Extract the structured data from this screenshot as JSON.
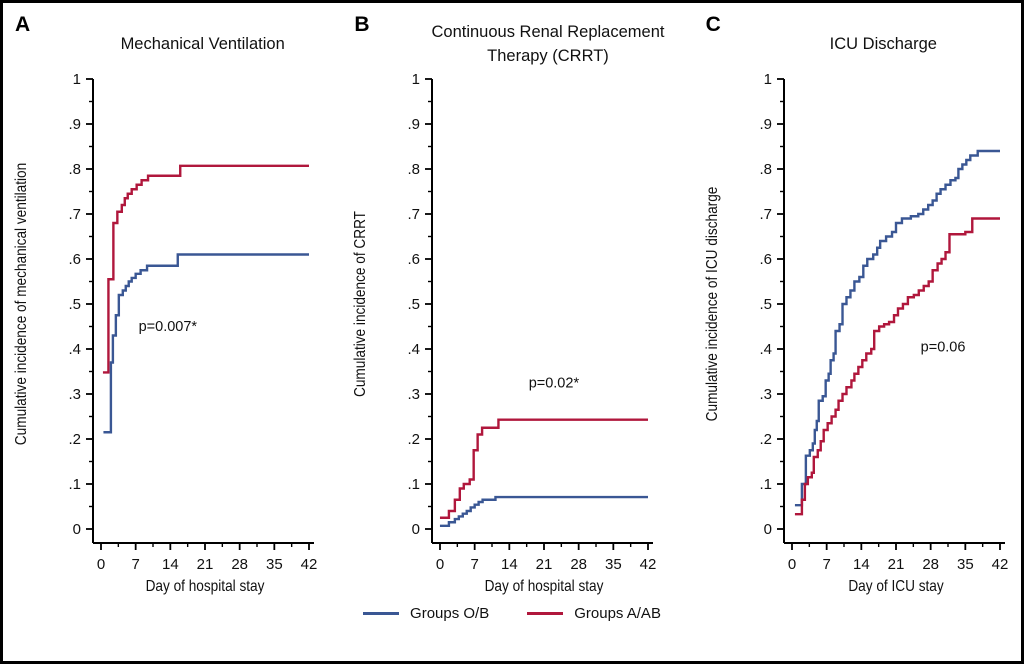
{
  "figure_colors": {
    "group_ob_blue": "#3A5794",
    "group_aab_red": "#B0173C",
    "axis_black": "#000000"
  },
  "legend": {
    "items": [
      {
        "label": "Groups O/B",
        "color": "#3A5794"
      },
      {
        "label": "Groups A/AB",
        "color": "#B0173C"
      }
    ]
  },
  "chart_data": [
    {
      "type": "line",
      "subtype": "step-cumulative-incidence",
      "panel_label": "A",
      "title": "Mechanical Ventilation",
      "xlabel": "Day of hospital stay",
      "ylabel": "Cumulative incidence of mechanical ventilation",
      "annotation": {
        "text": "p=0.007*",
        "x": 13.5,
        "y": 0.44
      },
      "xlim": [
        0,
        42
      ],
      "ylim": [
        0,
        1
      ],
      "x_major_ticks": [
        0,
        7,
        14,
        21,
        28,
        35,
        42
      ],
      "y_major_ticks": [
        0,
        0.1,
        0.2,
        0.3,
        0.4,
        0.5,
        0.6,
        0.7,
        0.8,
        0.9,
        1
      ],
      "grid": false,
      "series": [
        {
          "name": "Groups A/AB",
          "color": "#B0173C",
          "points": [
            [
              1.2,
              0.348
            ],
            [
              1.5,
              0.555
            ],
            [
              2.5,
              0.68
            ],
            [
              3.3,
              0.705
            ],
            [
              4.2,
              0.72
            ],
            [
              4.8,
              0.735
            ],
            [
              5.4,
              0.745
            ],
            [
              6.2,
              0.755
            ],
            [
              7.2,
              0.765
            ],
            [
              8.2,
              0.775
            ],
            [
              9.5,
              0.785
            ],
            [
              16,
              0.807
            ],
            [
              42,
              0.807
            ]
          ]
        },
        {
          "name": "Groups O/B",
          "color": "#3A5794",
          "points": [
            [
              1.3,
              0.215
            ],
            [
              2.0,
              0.37
            ],
            [
              2.4,
              0.43
            ],
            [
              3.0,
              0.475
            ],
            [
              3.6,
              0.52
            ],
            [
              4.4,
              0.53
            ],
            [
              5.0,
              0.54
            ],
            [
              5.6,
              0.55
            ],
            [
              6.2,
              0.558
            ],
            [
              7.0,
              0.567
            ],
            [
              8.0,
              0.575
            ],
            [
              9.3,
              0.585
            ],
            [
              15.5,
              0.61
            ],
            [
              42,
              0.61
            ]
          ]
        }
      ]
    },
    {
      "type": "line",
      "subtype": "step-cumulative-incidence",
      "panel_label": "B",
      "title": "Continuous Renal Replacement\nTherapy (CRRT)",
      "xlabel": "Day of hospital stay",
      "ylabel": "Cumulative incidence of CRRT",
      "annotation": {
        "text": "p=0.02*",
        "x": 23,
        "y": 0.315
      },
      "xlim": [
        0,
        42
      ],
      "ylim": [
        0,
        1
      ],
      "x_major_ticks": [
        0,
        7,
        14,
        21,
        28,
        35,
        42
      ],
      "y_major_ticks": [
        0,
        0.1,
        0.2,
        0.3,
        0.4,
        0.5,
        0.6,
        0.7,
        0.8,
        0.9,
        1
      ],
      "grid": false,
      "series": [
        {
          "name": "Groups A/AB",
          "color": "#B0173C",
          "points": [
            [
              0.8,
              0.025
            ],
            [
              1.8,
              0.04
            ],
            [
              3.0,
              0.065
            ],
            [
              4.0,
              0.09
            ],
            [
              4.8,
              0.1
            ],
            [
              6.0,
              0.11
            ],
            [
              6.8,
              0.175
            ],
            [
              7.6,
              0.21
            ],
            [
              8.5,
              0.225
            ],
            [
              11.8,
              0.243
            ],
            [
              42,
              0.243
            ]
          ]
        },
        {
          "name": "Groups O/B",
          "color": "#3A5794",
          "points": [
            [
              0.8,
              0.007
            ],
            [
              1.8,
              0.015
            ],
            [
              3.0,
              0.022
            ],
            [
              3.8,
              0.028
            ],
            [
              4.6,
              0.034
            ],
            [
              5.4,
              0.04
            ],
            [
              6.2,
              0.048
            ],
            [
              7.0,
              0.054
            ],
            [
              7.8,
              0.06
            ],
            [
              8.6,
              0.065
            ],
            [
              11.2,
              0.071
            ],
            [
              42,
              0.071
            ]
          ]
        }
      ]
    },
    {
      "type": "line",
      "subtype": "step-cumulative-incidence",
      "panel_label": "C",
      "title": "ICU Discharge",
      "xlabel": "Day of ICU stay",
      "ylabel": "Cumulative incidence of ICU discharge",
      "annotation": {
        "text": "p=0.06",
        "x": 30.5,
        "y": 0.395
      },
      "xlim": [
        0,
        42
      ],
      "ylim": [
        0,
        1
      ],
      "x_major_ticks": [
        0,
        7,
        14,
        21,
        28,
        35,
        42
      ],
      "y_major_ticks": [
        0,
        0.1,
        0.2,
        0.3,
        0.4,
        0.5,
        0.6,
        0.7,
        0.8,
        0.9,
        1
      ],
      "grid": false,
      "series": [
        {
          "name": "Groups O/B",
          "color": "#3A5794",
          "points": [
            [
              1.4,
              0.053
            ],
            [
              2.0,
              0.1
            ],
            [
              2.8,
              0.163
            ],
            [
              3.6,
              0.175
            ],
            [
              4.2,
              0.19
            ],
            [
              4.6,
              0.22
            ],
            [
              5.0,
              0.24
            ],
            [
              5.4,
              0.285
            ],
            [
              6.2,
              0.295
            ],
            [
              6.8,
              0.33
            ],
            [
              7.4,
              0.345
            ],
            [
              7.8,
              0.375
            ],
            [
              8.4,
              0.39
            ],
            [
              8.8,
              0.44
            ],
            [
              9.6,
              0.455
            ],
            [
              10.2,
              0.5
            ],
            [
              11.0,
              0.515
            ],
            [
              11.8,
              0.53
            ],
            [
              12.6,
              0.55
            ],
            [
              13.6,
              0.56
            ],
            [
              14.4,
              0.585
            ],
            [
              15.2,
              0.6
            ],
            [
              16.4,
              0.61
            ],
            [
              17.2,
              0.625
            ],
            [
              17.8,
              0.64
            ],
            [
              19.0,
              0.65
            ],
            [
              20.2,
              0.66
            ],
            [
              21.0,
              0.68
            ],
            [
              22.2,
              0.69
            ],
            [
              24.0,
              0.695
            ],
            [
              25.5,
              0.7
            ],
            [
              26.5,
              0.71
            ],
            [
              27.5,
              0.72
            ],
            [
              28.4,
              0.73
            ],
            [
              29.2,
              0.745
            ],
            [
              30.0,
              0.755
            ],
            [
              31.0,
              0.765
            ],
            [
              32.0,
              0.775
            ],
            [
              33.0,
              0.78
            ],
            [
              33.6,
              0.8
            ],
            [
              34.4,
              0.81
            ],
            [
              35.2,
              0.82
            ],
            [
              36.0,
              0.83
            ],
            [
              37.5,
              0.84
            ],
            [
              42,
              0.84
            ]
          ]
        },
        {
          "name": "Groups A/AB",
          "color": "#B0173C",
          "points": [
            [
              1.4,
              0.033
            ],
            [
              2.0,
              0.065
            ],
            [
              2.6,
              0.1
            ],
            [
              3.2,
              0.115
            ],
            [
              4.0,
              0.125
            ],
            [
              4.4,
              0.16
            ],
            [
              5.2,
              0.175
            ],
            [
              5.8,
              0.195
            ],
            [
              6.4,
              0.22
            ],
            [
              7.2,
              0.235
            ],
            [
              8.0,
              0.25
            ],
            [
              8.8,
              0.265
            ],
            [
              9.4,
              0.285
            ],
            [
              10.2,
              0.3
            ],
            [
              11.0,
              0.315
            ],
            [
              12.0,
              0.33
            ],
            [
              12.6,
              0.345
            ],
            [
              13.4,
              0.36
            ],
            [
              14.2,
              0.375
            ],
            [
              15.0,
              0.39
            ],
            [
              16.0,
              0.4
            ],
            [
              16.6,
              0.44
            ],
            [
              17.6,
              0.45
            ],
            [
              18.6,
              0.455
            ],
            [
              19.6,
              0.46
            ],
            [
              20.6,
              0.475
            ],
            [
              21.4,
              0.49
            ],
            [
              22.4,
              0.5
            ],
            [
              23.4,
              0.515
            ],
            [
              24.6,
              0.52
            ],
            [
              25.6,
              0.53
            ],
            [
              26.6,
              0.54
            ],
            [
              27.6,
              0.55
            ],
            [
              28.4,
              0.575
            ],
            [
              29.4,
              0.59
            ],
            [
              30.2,
              0.6
            ],
            [
              31.0,
              0.615
            ],
            [
              31.8,
              0.655
            ],
            [
              35.0,
              0.66
            ],
            [
              36.4,
              0.69
            ],
            [
              42,
              0.69
            ]
          ]
        }
      ]
    }
  ]
}
